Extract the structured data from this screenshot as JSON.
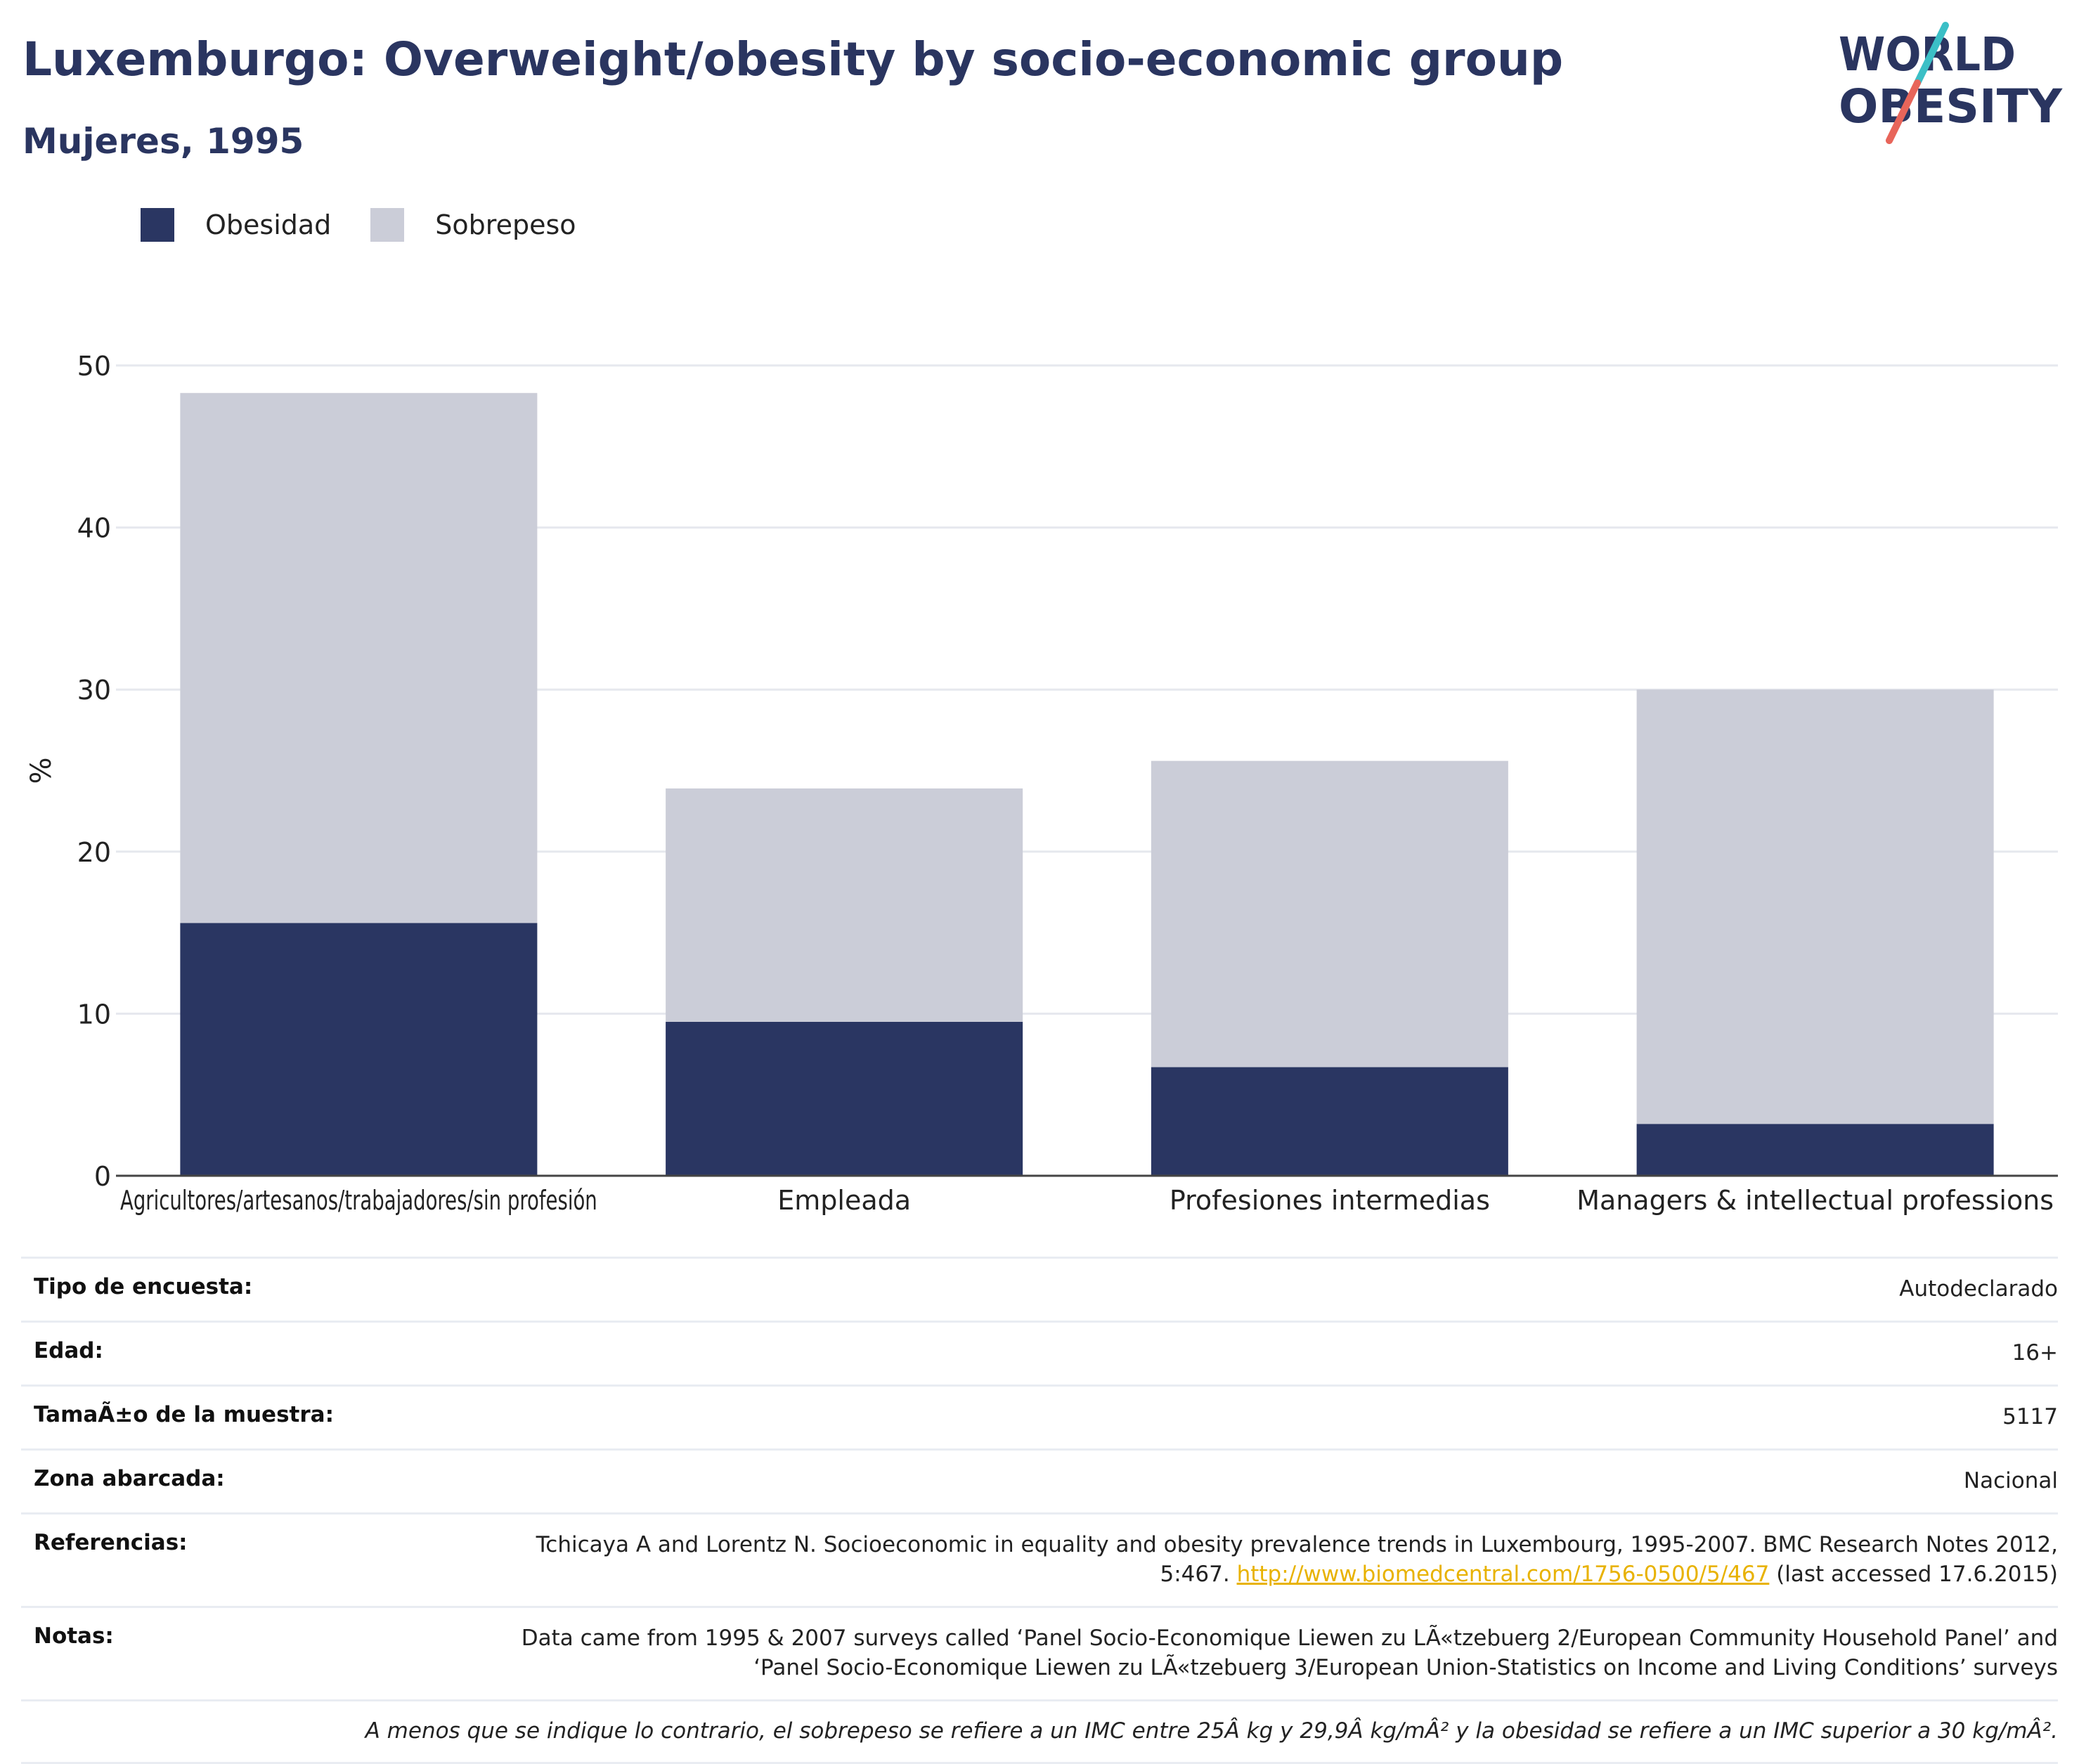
{
  "header": {
    "title": "Luxemburgo: Overweight/obesity by socio-economic group",
    "subtitle": "Mujeres, 1995"
  },
  "logo": {
    "line1": "WORLD",
    "line2": "OBESITY",
    "colors": {
      "text": "#2a3560",
      "slash_top": "#3bbfc6",
      "slash_bottom": "#e8655a"
    }
  },
  "legend": {
    "items": [
      {
        "label": "Obesidad",
        "color": "#2a3662"
      },
      {
        "label": "Sobrepeso",
        "color": "#cbcdd8"
      }
    ]
  },
  "chart_data": {
    "type": "bar",
    "stacked": true,
    "categories": [
      "Agricultores/artesanos/trabajadores/sin profesión",
      "Empleada",
      "Profesiones intermedias",
      "Managers & intellectual professions"
    ],
    "series": [
      {
        "name": "Obesidad",
        "values": [
          15.6,
          9.5,
          6.7,
          3.2
        ],
        "color": "#2a3662"
      },
      {
        "name": "Sobrepeso",
        "values": [
          32.7,
          14.4,
          18.9,
          26.8
        ],
        "color": "#cbcdd8"
      }
    ],
    "xlabel": "",
    "ylabel": "%",
    "ylim": [
      0,
      50
    ],
    "yticks": [
      0,
      10,
      20,
      30,
      40,
      50
    ],
    "grid": true,
    "legend_position": "top-left"
  },
  "info": {
    "rows": [
      {
        "label": "Tipo de encuesta:",
        "value": "Autodeclarado"
      },
      {
        "label": "Edad:",
        "value": "16+"
      },
      {
        "label": "TamaÃ±o de la muestra:",
        "value": "5117"
      },
      {
        "label": "Zona abarcada:",
        "value": "Nacional"
      },
      {
        "label": "Referencias:",
        "value_before": "Tchicaya A and Lorentz N. Socioeconomic in equality and obesity prevalence trends in Luxembourg, 1995-2007. BMC Research Notes 2012, 5:467. ",
        "link": "http://www.biomedcentral.com/1756-0500/5/467",
        "value_after": " (last accessed 17.6.2015)"
      },
      {
        "label": "Notas:",
        "value": "Data came from 1995 & 2007 surveys called ‘Panel Socio-Economique Liewen zu LÃ«tzebuerg 2/European Community Household Panel’ and ‘Panel Socio-Economique Liewen zu LÃ«tzebuerg 3/European Union-Statistics on Income and Living Conditions’ surveys"
      }
    ],
    "footnote": "A menos que se indique lo contrario, el sobrepeso se refiere a un IMC entre 25Â kg y 29,9Â kg/mÂ² y la obesidad se refiere a un IMC superior a 30 kg/mÂ²."
  }
}
